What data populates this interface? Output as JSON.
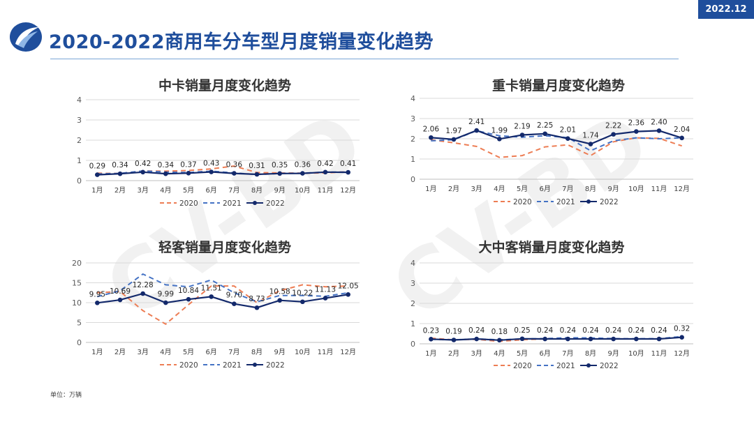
{
  "badge": "2022.12",
  "page_title": "2020-2022商用车分车型月度销量变化趋势",
  "watermark": "CV-BD",
  "unit_note": "单位：万辆",
  "colors": {
    "s2020": "#ed7d54",
    "s2021": "#4472c4",
    "s2022": "#13296b",
    "brand": "#1f4e9c"
  },
  "chart_data": [
    {
      "type": "line",
      "title": "中卡销量月度变化趋势",
      "categories": [
        "1月",
        "2月",
        "3月",
        "4月",
        "5月",
        "6月",
        "7月",
        "8月",
        "9月",
        "10月",
        "11月",
        "12月"
      ],
      "ylim": [
        0,
        4
      ],
      "yticks": [
        0,
        1,
        2,
        3,
        4
      ],
      "series": [
        {
          "name": "2020",
          "values": [
            0.37,
            0.35,
            0.48,
            0.47,
            0.5,
            0.58,
            0.72,
            0.4,
            0.38,
            0.37,
            0.38,
            0.44
          ]
        },
        {
          "name": "2021",
          "values": [
            0.33,
            0.36,
            0.48,
            0.42,
            0.4,
            0.47,
            0.38,
            0.3,
            0.35,
            0.37,
            0.42,
            0.42
          ]
        },
        {
          "name": "2022",
          "values": [
            0.29,
            0.34,
            0.42,
            0.34,
            0.37,
            0.43,
            0.36,
            0.31,
            0.35,
            0.36,
            0.42,
            0.41
          ]
        }
      ],
      "labels": [
        "0.29",
        "0.34",
        "0.42",
        "0.34",
        "0.37",
        "0.43",
        "0.36",
        "0.31",
        "0.35",
        "0.36",
        "0.42",
        "0.41"
      ]
    },
    {
      "type": "line",
      "title": "重卡销量月度变化趋势",
      "categories": [
        "1月",
        "2月",
        "3月",
        "4月",
        "5月",
        "6月",
        "7月",
        "8月",
        "9月",
        "10月",
        "11月",
        "12月"
      ],
      "ylim": [
        0,
        4
      ],
      "yticks": [
        0,
        1,
        2,
        3,
        4
      ],
      "series": [
        {
          "name": "2020",
          "values": [
            1.95,
            1.8,
            1.62,
            1.08,
            1.17,
            1.6,
            1.7,
            1.17,
            1.85,
            2.05,
            2.02,
            1.65
          ]
        },
        {
          "name": "2021",
          "values": [
            1.9,
            1.95,
            2.4,
            2.15,
            2.08,
            2.15,
            2.06,
            1.41,
            1.9,
            2.05,
            2.0,
            2.05
          ]
        },
        {
          "name": "2022",
          "values": [
            2.06,
            1.97,
            2.41,
            1.99,
            2.19,
            2.25,
            2.01,
            1.74,
            2.22,
            2.36,
            2.4,
            2.04
          ]
        }
      ],
      "labels": [
        "2.06",
        "1.97",
        "2.41",
        "1.99",
        "2.19",
        "2.25",
        "2.01",
        "1.74",
        "2.22",
        "2.36",
        "2.40",
        "2.04"
      ]
    },
    {
      "type": "line",
      "title": "轻客销量月度变化趋势",
      "categories": [
        "1月",
        "2月",
        "3月",
        "4月",
        "5月",
        "6月",
        "7月",
        "8月",
        "9月",
        "10月",
        "11月",
        "12月"
      ],
      "ylim": [
        0,
        20
      ],
      "yticks": [
        0,
        5,
        10,
        15,
        20
      ],
      "series": [
        {
          "name": "2020",
          "values": [
            12.5,
            12.8,
            8.0,
            4.6,
            9.5,
            14.2,
            14.2,
            10.0,
            13.0,
            14.5,
            14.0,
            14.2
          ]
        },
        {
          "name": "2021",
          "values": [
            11.5,
            13.0,
            17.2,
            14.5,
            14.0,
            15.7,
            12.5,
            10.2,
            11.8,
            11.8,
            11.6,
            12.5
          ]
        },
        {
          "name": "2022",
          "values": [
            9.95,
            10.69,
            12.28,
            9.99,
            10.84,
            11.51,
            9.7,
            8.73,
            10.58,
            10.22,
            11.13,
            12.05
          ]
        }
      ],
      "labels": [
        "9.95",
        "10.69",
        "12.28",
        "9.99",
        "10.84",
        "11.51",
        "9.70",
        "8.73",
        "10.58",
        "10.22",
        "11.13",
        "12.05"
      ]
    },
    {
      "type": "line",
      "title": "大中客销量月度变化趋势",
      "categories": [
        "1月",
        "2月",
        "3月",
        "4月",
        "5月",
        "6月",
        "7月",
        "8月",
        "9月",
        "10月",
        "11月",
        "12月"
      ],
      "ylim": [
        0,
        4
      ],
      "yticks": [
        0,
        1,
        2,
        3,
        4
      ],
      "series": [
        {
          "name": "2020",
          "values": [
            0.28,
            0.2,
            0.22,
            0.12,
            0.2,
            0.24,
            0.26,
            0.26,
            0.25,
            0.24,
            0.24,
            0.34
          ]
        },
        {
          "name": "2021",
          "values": [
            0.22,
            0.2,
            0.24,
            0.2,
            0.24,
            0.26,
            0.3,
            0.29,
            0.26,
            0.25,
            0.26,
            0.36
          ]
        },
        {
          "name": "2022",
          "values": [
            0.23,
            0.19,
            0.24,
            0.18,
            0.25,
            0.24,
            0.24,
            0.24,
            0.24,
            0.24,
            0.24,
            0.32
          ]
        }
      ],
      "labels": [
        "0.23",
        "0.19",
        "0.24",
        "0.18",
        "0.25",
        "0.24",
        "0.24",
        "0.24",
        "0.24",
        "0.24",
        "0.24",
        "0.32"
      ]
    }
  ]
}
